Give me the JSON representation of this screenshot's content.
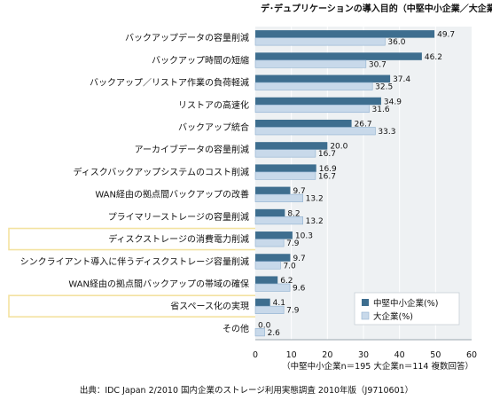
{
  "chart_data": {
    "type": "bar",
    "orientation": "horizontal",
    "title": "デ･デュプリケーションの導入目的（中堅中小企業／大企業別）",
    "categories": [
      "バックアップデータの容量削減",
      "バックアップ時間の短縮",
      "バックアップ／リストア作業の負荷軽減",
      "リストアの高速化",
      "バックアップ統合",
      "アーカイブデータの容量削減",
      "ディスクバックアップシステムのコスト削減",
      "WAN経由の拠点間バックアップの改善",
      "プライマリーストレージの容量削減",
      "ディスクストレージの消費電力削減",
      "シンクライアント導入に伴うディスクストレージ容量削減",
      "WAN経由の拠点間バックアップの帯域の確保",
      "省スペース化の実現",
      "その他"
    ],
    "series": [
      {
        "name": "中堅中小企業(%)",
        "color": "#3e6e8f",
        "values": [
          49.7,
          46.2,
          37.4,
          34.9,
          26.7,
          20.0,
          16.9,
          9.7,
          8.2,
          10.3,
          9.7,
          6.2,
          4.1,
          0.0
        ],
        "value_labels": [
          "49.7",
          "46.2",
          "37.4",
          "34.9",
          "26.7",
          "20.0",
          "16.9",
          "9.7",
          "8.2",
          "10.3",
          "9.7",
          "6.2",
          "4.1",
          "0.0"
        ]
      },
      {
        "name": "大企業(%)",
        "color": "#c8d9ea",
        "values": [
          36.0,
          30.7,
          32.5,
          31.6,
          33.3,
          16.7,
          16.7,
          13.2,
          13.2,
          7.9,
          7.0,
          9.6,
          7.9,
          2.6
        ],
        "value_labels": [
          "36.0",
          "30.7",
          "32.5",
          "31.6",
          "33.3",
          "16.7",
          "16.7",
          "13.2",
          "13.2",
          "7.9",
          "7.0",
          "9.6",
          "7.9",
          "2.6"
        ]
      }
    ],
    "highlighted_categories": [
      "ディスクストレージの消費電力削減",
      "省スペース化の実現"
    ],
    "xlim": [
      0,
      60
    ],
    "xticks": [
      "0",
      "10",
      "20",
      "30",
      "40",
      "50",
      "60"
    ],
    "grid": true,
    "legend_position": "bottom-right",
    "note": "（中堅中小企業n＝195  大企業n＝114  複数回答）",
    "source": "出典：IDC Japan 2/2010 国内企業のストレージ利用実態調査 2010年版（J9710601）",
    "colors": {
      "plot_background": "#eef1f3",
      "highlight_border": "#f3e2a0",
      "gridline": "#ffffff"
    }
  }
}
